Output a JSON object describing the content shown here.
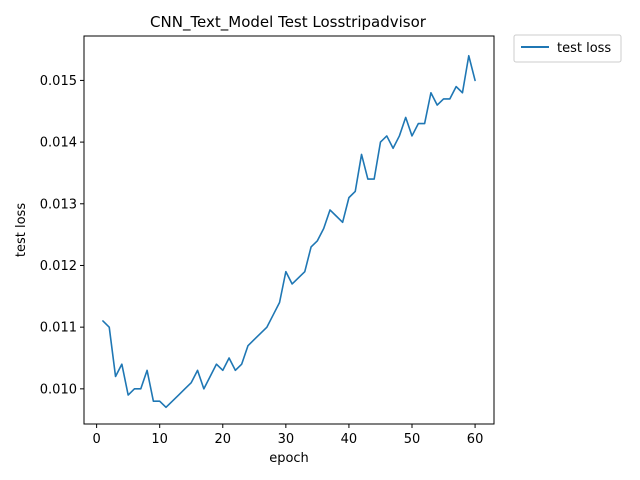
{
  "chart_data": {
    "type": "line",
    "title": "CNN_Text_Model Test Losstripadvisor",
    "xlabel": "epoch",
    "ylabel": "test loss",
    "xlim": [
      -2,
      63
    ],
    "ylim": [
      0.00943,
      0.01572
    ],
    "xticks": [
      0,
      10,
      20,
      30,
      40,
      50,
      60
    ],
    "xtick_labels": [
      "0",
      "10",
      "20",
      "30",
      "40",
      "50",
      "60"
    ],
    "yticks": [
      0.01,
      0.011,
      0.012,
      0.013,
      0.014,
      0.015
    ],
    "ytick_labels": [
      "0.010",
      "0.011",
      "0.012",
      "0.013",
      "0.014",
      "0.015"
    ],
    "grid": false,
    "legend": {
      "placement": "outside-top-right"
    },
    "series": [
      {
        "name": "test loss",
        "color": "#1f77b4",
        "x": [
          1,
          2,
          3,
          4,
          5,
          6,
          7,
          8,
          9,
          10,
          11,
          12,
          13,
          14,
          15,
          16,
          17,
          18,
          19,
          20,
          21,
          22,
          23,
          24,
          25,
          26,
          27,
          28,
          29,
          30,
          31,
          32,
          33,
          34,
          35,
          36,
          37,
          38,
          39,
          40,
          41,
          42,
          43,
          44,
          45,
          46,
          47,
          48,
          49,
          50,
          51,
          52,
          53,
          54,
          55,
          56,
          57,
          58,
          59,
          60
        ],
        "y": [
          0.0111,
          0.011,
          0.0102,
          0.0104,
          0.0099,
          0.01,
          0.01,
          0.0103,
          0.0098,
          0.0098,
          0.0097,
          0.0098,
          0.0099,
          0.01,
          0.0101,
          0.0103,
          0.01,
          0.0102,
          0.0104,
          0.0103,
          0.0105,
          0.0103,
          0.0104,
          0.0107,
          0.0108,
          0.0109,
          0.011,
          0.0112,
          0.0114,
          0.0119,
          0.0117,
          0.0118,
          0.0119,
          0.0123,
          0.0124,
          0.0126,
          0.0129,
          0.0128,
          0.0127,
          0.0131,
          0.0132,
          0.0138,
          0.0134,
          0.0134,
          0.014,
          0.0141,
          0.0139,
          0.0141,
          0.0144,
          0.0141,
          0.0143,
          0.0143,
          0.0148,
          0.0146,
          0.0147,
          0.0147,
          0.0149,
          0.0148,
          0.0154,
          0.015
        ]
      }
    ]
  }
}
